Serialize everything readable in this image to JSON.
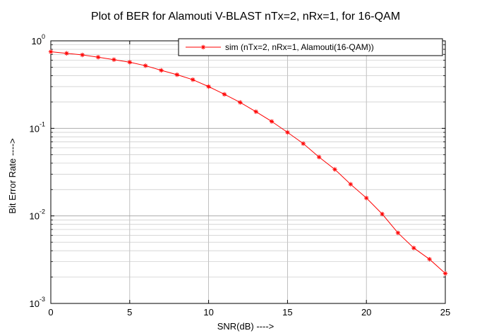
{
  "chart_data": {
    "type": "line",
    "title": "Plot of BER for Alamouti V-BLAST nTx=2, nRx=1, for 16-QAM",
    "xlabel": "SNR(dB) ---->",
    "ylabel": "Bit  Error Rate ---->",
    "xlim": [
      0,
      25
    ],
    "ylim": [
      0.001,
      1
    ],
    "yscale": "log",
    "grid": true,
    "legend_position": "top-right",
    "x_ticks": [
      "0",
      "5",
      "10",
      "15",
      "20",
      "25"
    ],
    "y_ticks": [
      {
        "base": "10",
        "exp": "-3"
      },
      {
        "base": "10",
        "exp": "-2"
      },
      {
        "base": "10",
        "exp": "-1"
      },
      {
        "base": "10",
        "exp": "0"
      }
    ],
    "series": [
      {
        "name": "sim (nTx=2, nRx=1, Alamouti(16-QAM))",
        "color": "#ff0000",
        "marker": "asterisk",
        "x": [
          0,
          1,
          2,
          3,
          4,
          5,
          6,
          7,
          8,
          9,
          10,
          11,
          12,
          13,
          14,
          15,
          16,
          17,
          18,
          19,
          20,
          21,
          22,
          23,
          24,
          25
        ],
        "y": [
          0.75,
          0.72,
          0.69,
          0.65,
          0.61,
          0.57,
          0.52,
          0.46,
          0.41,
          0.36,
          0.3,
          0.245,
          0.198,
          0.155,
          0.12,
          0.09,
          0.067,
          0.047,
          0.034,
          0.023,
          0.016,
          0.0105,
          0.0064,
          0.0043,
          0.0032,
          0.0022
        ]
      }
    ]
  }
}
